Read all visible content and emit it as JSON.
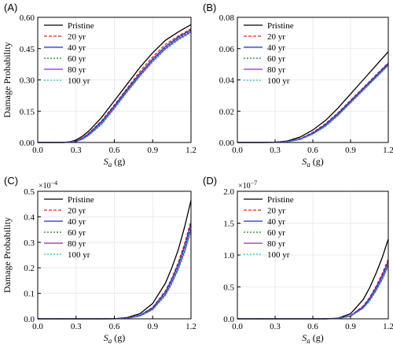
{
  "figure": {
    "panels": [
      "(A)",
      "(B)",
      "(C)",
      "(D)"
    ]
  },
  "chart_data": [
    {
      "panel_label": "(A)",
      "type": "line",
      "xlabel_main": "S",
      "xlabel_sub": "a",
      "xlabel_rest": " (g)",
      "ylabel": "Damage Probability",
      "xlim": [
        0,
        1.2
      ],
      "ylim": [
        0,
        0.6
      ],
      "xticks": [
        0,
        0.3,
        0.6,
        0.9,
        1.2
      ],
      "xtick_labels": [
        "0.0",
        "0.3",
        "0.6",
        "0.9",
        "1.2"
      ],
      "yticks": [
        0,
        0.15,
        0.3,
        0.45,
        0.6
      ],
      "ytick_labels": [
        "0.00",
        "0.15",
        "0.30",
        "0.45",
        "0.60"
      ],
      "multiplier": "",
      "multiplier_exp": "",
      "grid": true,
      "legend": "top-left",
      "x": [
        0.0,
        0.1,
        0.2,
        0.25,
        0.3,
        0.35,
        0.4,
        0.5,
        0.6,
        0.7,
        0.8,
        0.9,
        1.0,
        1.1,
        1.2
      ],
      "series": [
        {
          "name": "Pristine",
          "color": "#000000",
          "dash": "solid",
          "values": [
            0,
            0,
            0.0005,
            0.003,
            0.012,
            0.03,
            0.055,
            0.12,
            0.2,
            0.28,
            0.36,
            0.43,
            0.49,
            0.53,
            0.565
          ]
        },
        {
          "name": "20 yr",
          "color": "#e8241b",
          "dash": "dashed",
          "values": [
            0,
            0,
            0.0003,
            0.002,
            0.008,
            0.022,
            0.045,
            0.105,
            0.18,
            0.26,
            0.34,
            0.41,
            0.47,
            0.51,
            0.545
          ]
        },
        {
          "name": "40 yr",
          "color": "#1f2fbf",
          "dash": "solid",
          "values": [
            0,
            0,
            0.0003,
            0.002,
            0.007,
            0.02,
            0.042,
            0.1,
            0.175,
            0.255,
            0.33,
            0.4,
            0.46,
            0.505,
            0.54
          ]
        },
        {
          "name": "60 yr",
          "color": "#1b7a1b",
          "dash": "dotted",
          "values": [
            0,
            0,
            0.0002,
            0.0015,
            0.006,
            0.018,
            0.039,
            0.095,
            0.17,
            0.25,
            0.325,
            0.395,
            0.455,
            0.5,
            0.535
          ]
        },
        {
          "name": "80 yr",
          "color": "#8a2be2",
          "dash": "solid",
          "values": [
            0,
            0,
            0.0002,
            0.0012,
            0.005,
            0.016,
            0.036,
            0.09,
            0.165,
            0.245,
            0.32,
            0.39,
            0.45,
            0.495,
            0.53
          ]
        },
        {
          "name": "100 yr",
          "color": "#27c4c4",
          "dash": "dotted",
          "values": [
            0,
            0,
            0.0002,
            0.001,
            0.004,
            0.014,
            0.033,
            0.085,
            0.16,
            0.24,
            0.315,
            0.385,
            0.445,
            0.49,
            0.525
          ]
        }
      ]
    },
    {
      "panel_label": "(B)",
      "type": "line",
      "xlabel_main": "S",
      "xlabel_sub": "a",
      "xlabel_rest": " (g)",
      "ylabel": "",
      "xlim": [
        0,
        1.2
      ],
      "ylim": [
        0,
        0.08
      ],
      "xticks": [
        0,
        0.3,
        0.6,
        0.9,
        1.2
      ],
      "xtick_labels": [
        "0.0",
        "0.3",
        "0.6",
        "0.9",
        "1.2"
      ],
      "yticks": [
        0,
        0.02,
        0.04,
        0.06,
        0.08
      ],
      "ytick_labels": [
        "0.00",
        "0.02",
        "0.04",
        "0.06",
        "0.08"
      ],
      "multiplier": "",
      "multiplier_exp": "",
      "grid": true,
      "legend": "top-left",
      "x": [
        0.0,
        0.2,
        0.3,
        0.4,
        0.5,
        0.6,
        0.7,
        0.8,
        0.9,
        1.0,
        1.1,
        1.2
      ],
      "series": [
        {
          "name": "Pristine",
          "color": "#000000",
          "dash": "solid",
          "values": [
            0,
            0,
            0.0002,
            0.001,
            0.0035,
            0.008,
            0.014,
            0.022,
            0.031,
            0.04,
            0.049,
            0.058
          ]
        },
        {
          "name": "20 yr",
          "color": "#e8241b",
          "dash": "dashed",
          "values": [
            0,
            0,
            0.0001,
            0.0007,
            0.0025,
            0.0065,
            0.012,
            0.019,
            0.027,
            0.035,
            0.043,
            0.051
          ]
        },
        {
          "name": "40 yr",
          "color": "#1f2fbf",
          "dash": "solid",
          "values": [
            0,
            0,
            0.0001,
            0.0006,
            0.0023,
            0.006,
            0.0115,
            0.0185,
            0.0265,
            0.0345,
            0.0425,
            0.0505
          ]
        },
        {
          "name": "60 yr",
          "color": "#1b7a1b",
          "dash": "dotted",
          "values": [
            0,
            0,
            0.0001,
            0.0005,
            0.0021,
            0.0057,
            0.011,
            0.018,
            0.026,
            0.034,
            0.042,
            0.05
          ]
        },
        {
          "name": "80 yr",
          "color": "#8a2be2",
          "dash": "solid",
          "values": [
            0,
            0,
            0.0001,
            0.0005,
            0.002,
            0.0055,
            0.0105,
            0.0175,
            0.0255,
            0.0335,
            0.0415,
            0.0495
          ]
        },
        {
          "name": "100 yr",
          "color": "#27c4c4",
          "dash": "dotted",
          "values": [
            0,
            0,
            0.0001,
            0.0004,
            0.0018,
            0.0052,
            0.01,
            0.017,
            0.025,
            0.033,
            0.041,
            0.049
          ]
        }
      ]
    },
    {
      "panel_label": "(C)",
      "type": "line",
      "xlabel_main": "S",
      "xlabel_sub": "a",
      "xlabel_rest": " (g)",
      "ylabel": "Damage Probability",
      "xlim": [
        0,
        1.2
      ],
      "ylim": [
        0,
        0.5
      ],
      "xticks": [
        0,
        0.3,
        0.6,
        0.9,
        1.2
      ],
      "xtick_labels": [
        "0.0",
        "0.3",
        "0.6",
        "0.9",
        "1.2"
      ],
      "yticks": [
        0,
        0.1,
        0.2,
        0.3,
        0.4,
        0.5
      ],
      "ytick_labels": [
        "0.0",
        "0.1",
        "0.2",
        "0.3",
        "0.4",
        "0.5"
      ],
      "multiplier": "×10",
      "multiplier_exp": "−4",
      "grid": true,
      "legend": "top-left",
      "x": [
        0.0,
        0.5,
        0.6,
        0.7,
        0.8,
        0.9,
        1.0,
        1.05,
        1.1,
        1.15,
        1.2
      ],
      "series": [
        {
          "name": "Pristine",
          "color": "#000000",
          "dash": "solid",
          "values": [
            0,
            0,
            0.0005,
            0.005,
            0.02,
            0.06,
            0.14,
            0.2,
            0.27,
            0.36,
            0.465
          ]
        },
        {
          "name": "20 yr",
          "color": "#e8241b",
          "dash": "dashed",
          "values": [
            0,
            0,
            0.0003,
            0.003,
            0.014,
            0.045,
            0.11,
            0.16,
            0.22,
            0.295,
            0.385
          ]
        },
        {
          "name": "40 yr",
          "color": "#1f2fbf",
          "dash": "solid",
          "values": [
            0,
            0,
            0.0003,
            0.0028,
            0.013,
            0.043,
            0.105,
            0.155,
            0.212,
            0.285,
            0.372
          ]
        },
        {
          "name": "60 yr",
          "color": "#1b7a1b",
          "dash": "dotted",
          "values": [
            0,
            0,
            0.0002,
            0.0025,
            0.012,
            0.04,
            0.1,
            0.148,
            0.205,
            0.275,
            0.36
          ]
        },
        {
          "name": "80 yr",
          "color": "#8a2be2",
          "dash": "solid",
          "values": [
            0,
            0,
            0.0002,
            0.0022,
            0.011,
            0.037,
            0.095,
            0.142,
            0.197,
            0.265,
            0.35
          ]
        },
        {
          "name": "100 yr",
          "color": "#27c4c4",
          "dash": "dotted",
          "values": [
            0,
            0,
            0.0002,
            0.002,
            0.01,
            0.034,
            0.09,
            0.135,
            0.19,
            0.256,
            0.34
          ]
        }
      ]
    },
    {
      "panel_label": "(D)",
      "type": "line",
      "xlabel_main": "S",
      "xlabel_sub": "a",
      "xlabel_rest": " (g)",
      "ylabel": "",
      "xlim": [
        0,
        1.2
      ],
      "ylim": [
        0,
        2.0
      ],
      "xticks": [
        0,
        0.3,
        0.6,
        0.9,
        1.2
      ],
      "xtick_labels": [
        "0.0",
        "0.3",
        "0.6",
        "0.9",
        "1.2"
      ],
      "yticks": [
        0,
        0.5,
        1.0,
        1.5,
        2.0
      ],
      "ytick_labels": [
        "0.0",
        "0.5",
        "1.0",
        "1.5",
        "2.0"
      ],
      "multiplier": "×10",
      "multiplier_exp": "−7",
      "grid": true,
      "legend": "top-left",
      "x": [
        0.0,
        0.7,
        0.8,
        0.9,
        1.0,
        1.05,
        1.1,
        1.15,
        1.2
      ],
      "series": [
        {
          "name": "Pristine",
          "color": "#000000",
          "dash": "solid",
          "values": [
            0,
            0,
            0.01,
            0.08,
            0.3,
            0.48,
            0.7,
            0.95,
            1.25
          ]
        },
        {
          "name": "20 yr",
          "color": "#e8241b",
          "dash": "dashed",
          "values": [
            0,
            0,
            0.006,
            0.05,
            0.2,
            0.33,
            0.5,
            0.7,
            0.94
          ]
        },
        {
          "name": "40 yr",
          "color": "#1f2fbf",
          "dash": "solid",
          "values": [
            0,
            0,
            0.0055,
            0.047,
            0.19,
            0.315,
            0.48,
            0.67,
            0.9
          ]
        },
        {
          "name": "60 yr",
          "color": "#1b7a1b",
          "dash": "dotted",
          "values": [
            0,
            0,
            0.005,
            0.044,
            0.18,
            0.3,
            0.46,
            0.645,
            0.87
          ]
        },
        {
          "name": "80 yr",
          "color": "#8a2be2",
          "dash": "solid",
          "values": [
            0,
            0,
            0.0045,
            0.041,
            0.17,
            0.285,
            0.44,
            0.62,
            0.84
          ]
        },
        {
          "name": "100 yr",
          "color": "#27c4c4",
          "dash": "dotted",
          "values": [
            0,
            0,
            0.004,
            0.038,
            0.16,
            0.27,
            0.42,
            0.595,
            0.81
          ]
        }
      ]
    }
  ]
}
